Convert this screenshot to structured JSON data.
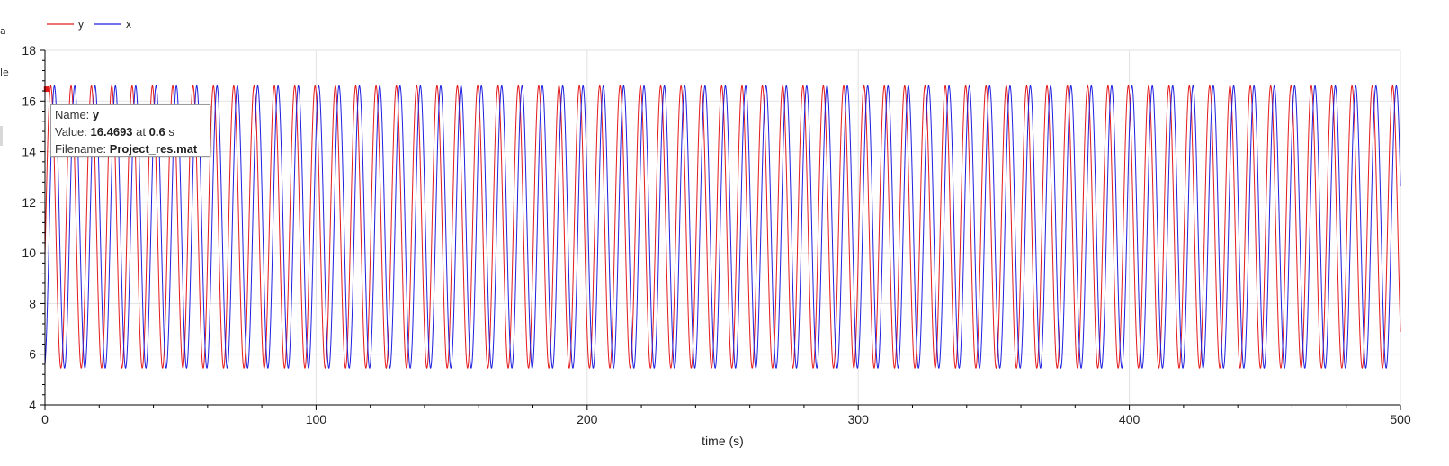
{
  "legend": [
    {
      "label": "y",
      "color": "#e41a1c"
    },
    {
      "label": "x",
      "color": "#1f1fe0"
    }
  ],
  "tooltip": {
    "name_label": "Name:",
    "name_value": "y",
    "value_label": "Value:",
    "value_number": "16.4693",
    "value_at": "at",
    "value_time": "0.6",
    "value_unit": "s",
    "filename_label": "Filename:",
    "filename_value": "Project_res.mat"
  },
  "edge_text": [
    "a",
    "le"
  ],
  "chart_data": {
    "type": "line",
    "xlabel": "time (s)",
    "ylabel": "",
    "xlim": [
      0,
      500
    ],
    "ylim": [
      4,
      18
    ],
    "x_ticks": [
      0,
      100,
      200,
      300,
      400,
      500
    ],
    "y_ticks": [
      4,
      6,
      8,
      10,
      12,
      14,
      16,
      18
    ],
    "grid": true,
    "legend_position": "top-left",
    "series": [
      {
        "name": "y",
        "color": "#e41a1c",
        "min": 5.45,
        "max": 16.6,
        "period": 7.5,
        "phase": 0.25
      },
      {
        "name": "x",
        "color": "#1f1fe0",
        "min": 5.45,
        "max": 16.6,
        "period": 7.5,
        "phase": 1.6
      }
    ]
  }
}
